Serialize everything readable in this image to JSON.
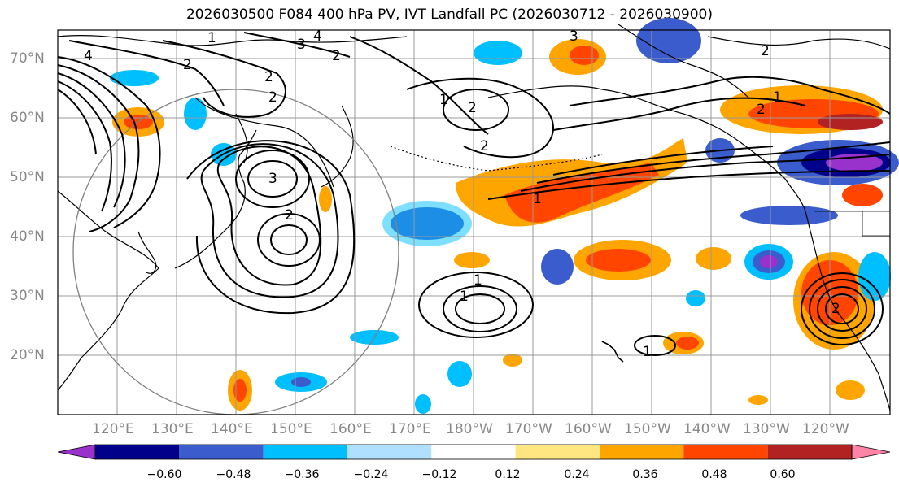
{
  "title": "2026030500 F084 400 hPa PV, IVT Landfall PC (2026030712 - 2026030900)",
  "map": {
    "lat_ticks": [
      "70°N",
      "60°N",
      "50°N",
      "40°N",
      "30°N",
      "20°N"
    ],
    "lon_ticks": [
      "120°E",
      "130°E",
      "140°E",
      "150°E",
      "160°E",
      "170°E",
      "180°W",
      "170°W",
      "160°W",
      "150°W",
      "140°W",
      "130°W",
      "120°W"
    ],
    "colors": {
      "land": "#000000",
      "grid": "#999999",
      "contour": "#000000"
    }
  },
  "colorbar": {
    "labels": [
      "−0.60",
      "−0.48",
      "−0.36",
      "−0.24",
      "−0.12",
      "0.12",
      "0.24",
      "0.36",
      "0.48",
      "0.60"
    ],
    "colors": [
      "#9932cc",
      "#00008b",
      "#3a5ccc",
      "#00bfff",
      "#b0e0ff",
      "#ffffff",
      "#ffe680",
      "#ffa500",
      "#ff4500",
      "#b22222",
      "#ff85a8"
    ]
  },
  "contour_labels": [
    "4",
    "3",
    "2",
    "1",
    "2",
    "2",
    "4",
    "3",
    "2",
    "1",
    "1",
    "2",
    "2",
    "1",
    "2",
    "1",
    "2",
    "1",
    "2",
    "3",
    "1",
    "2"
  ]
}
